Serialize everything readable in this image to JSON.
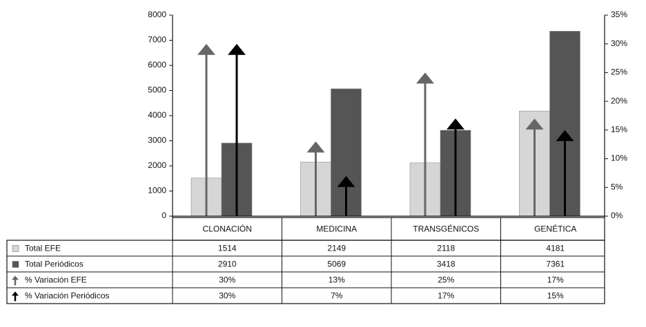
{
  "chart_data": {
    "type": "bar",
    "categories": [
      "CLONACIÓN",
      "MEDICINA",
      "TRANSGÉNICOS",
      "GENÉTICA"
    ],
    "series": [
      {
        "name": "Total EFE",
        "kind": "bar",
        "axis": "left",
        "color": "#d6d6d6",
        "values": [
          1514,
          2149,
          2118,
          4181
        ],
        "labels": [
          "1514",
          "2149",
          "2118",
          "4181"
        ]
      },
      {
        "name": "Total Periódicos",
        "kind": "bar",
        "axis": "left",
        "color": "#555555",
        "values": [
          2910,
          5069,
          3418,
          7361
        ],
        "labels": [
          "2910",
          "5069",
          "3418",
          "7361"
        ]
      },
      {
        "name": "% Variación EFE",
        "kind": "arrow",
        "axis": "right",
        "color": "#666666",
        "values": [
          30,
          13,
          25,
          17
        ],
        "labels": [
          "30%",
          "13%",
          "25%",
          "17%"
        ]
      },
      {
        "name": "% Variación Periódicos",
        "kind": "arrow",
        "axis": "right",
        "color": "#000000",
        "values": [
          30,
          7,
          17,
          15
        ],
        "labels": [
          "30%",
          "7%",
          "17%",
          "15%"
        ]
      }
    ],
    "y_left": {
      "ylim": [
        0,
        8000
      ],
      "ticks": [
        "0",
        "1000",
        "2000",
        "3000",
        "4000",
        "5000",
        "6000",
        "7000",
        "8000"
      ]
    },
    "y_right": {
      "ylim": [
        0,
        35
      ],
      "ticks": [
        "0%",
        "5%",
        "10%",
        "15%",
        "20%",
        "25%",
        "30%",
        "35%"
      ]
    },
    "grid": false,
    "legend": "data-table-below"
  }
}
